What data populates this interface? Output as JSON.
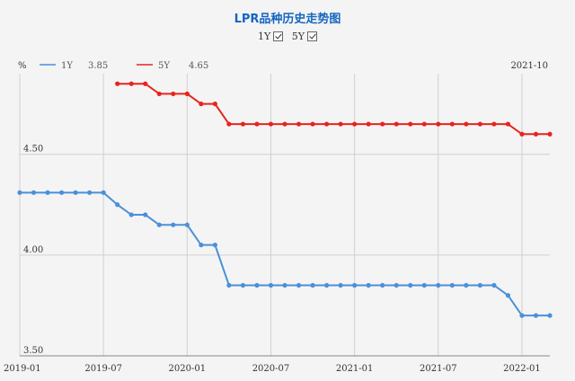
{
  "chart_data": {
    "type": "line",
    "title": "LPR品种历史走势图",
    "ylabel": "%",
    "as_of": "2021-10",
    "ylim": [
      3.5,
      4.9
    ],
    "yticks": [
      "4.50",
      "4.00",
      "3.50"
    ],
    "xlim": [
      "2019-01",
      "2022-03"
    ],
    "xticks": [
      "2019-01",
      "2019-07",
      "2020-01",
      "2020-07",
      "2021-01",
      "2021-07",
      "2022-01"
    ],
    "x": [
      "2019-01",
      "2019-02",
      "2019-03",
      "2019-04",
      "2019-05",
      "2019-06",
      "2019-07",
      "2019-08",
      "2019-09",
      "2019-10",
      "2019-11",
      "2019-12",
      "2020-01",
      "2020-02",
      "2020-03",
      "2020-04",
      "2020-05",
      "2020-06",
      "2020-07",
      "2020-08",
      "2020-09",
      "2020-10",
      "2020-11",
      "2020-12",
      "2021-01",
      "2021-02",
      "2021-03",
      "2021-04",
      "2021-05",
      "2021-06",
      "2021-07",
      "2021-08",
      "2021-09",
      "2021-10",
      "2021-11",
      "2021-12",
      "2022-01",
      "2022-02",
      "2022-03"
    ],
    "series": [
      {
        "name": "1Y",
        "legend_value": "3.85",
        "color": "#4a90d9",
        "values": [
          4.31,
          4.31,
          4.31,
          4.31,
          4.31,
          4.31,
          4.31,
          4.25,
          4.2,
          4.2,
          4.15,
          4.15,
          4.15,
          4.05,
          4.05,
          3.85,
          3.85,
          3.85,
          3.85,
          3.85,
          3.85,
          3.85,
          3.85,
          3.85,
          3.85,
          3.85,
          3.85,
          3.85,
          3.85,
          3.85,
          3.85,
          3.85,
          3.85,
          3.85,
          3.85,
          3.8,
          3.7,
          3.7,
          3.7
        ]
      },
      {
        "name": "5Y",
        "legend_value": "4.65",
        "color": "#e8231d",
        "values": [
          null,
          null,
          null,
          null,
          null,
          null,
          null,
          4.85,
          4.85,
          4.85,
          4.8,
          4.8,
          4.8,
          4.75,
          4.75,
          4.65,
          4.65,
          4.65,
          4.65,
          4.65,
          4.65,
          4.65,
          4.65,
          4.65,
          4.65,
          4.65,
          4.65,
          4.65,
          4.65,
          4.65,
          4.65,
          4.65,
          4.65,
          4.65,
          4.65,
          4.65,
          4.6,
          4.6,
          4.6
        ]
      }
    ],
    "toggles": [
      {
        "label": "1Y",
        "checked": true
      },
      {
        "label": "5Y",
        "checked": true
      }
    ],
    "grid": true
  }
}
